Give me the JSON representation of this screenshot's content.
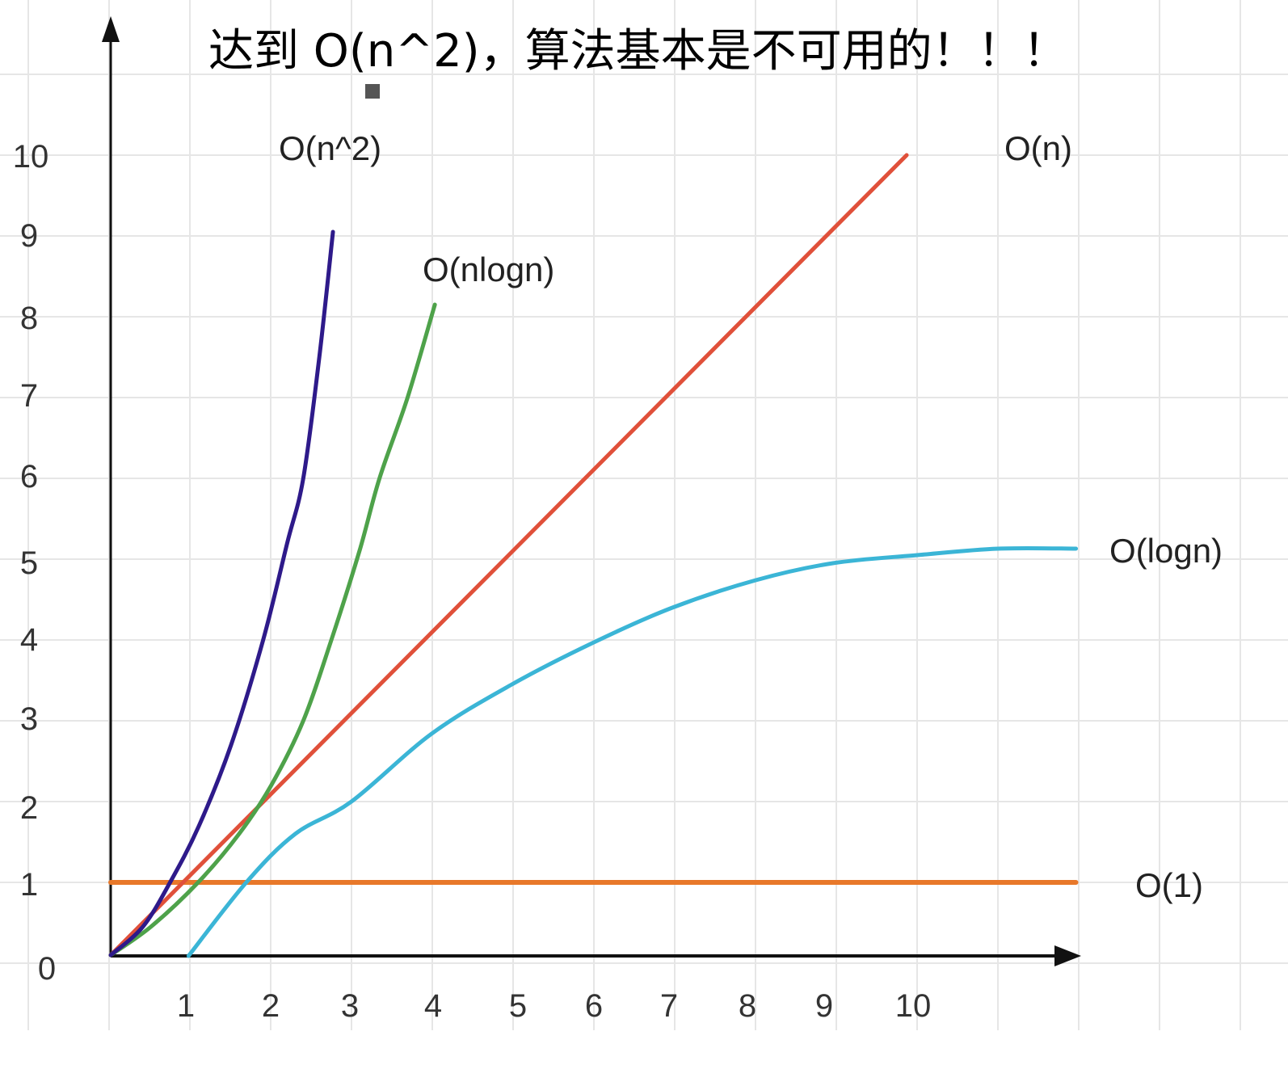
{
  "chart_data": {
    "type": "line",
    "title": "达到 O(n^2)，算法基本是不可用的！！！",
    "xlabel": "",
    "ylabel": "",
    "xlim": [
      0,
      12
    ],
    "ylim": [
      0,
      10
    ],
    "grid": true,
    "x_ticks": [
      "1",
      "2",
      "3",
      "4",
      "5",
      "6",
      "7",
      "8",
      "9",
      "10"
    ],
    "y_ticks": [
      "0",
      "1",
      "2",
      "3",
      "4",
      "5",
      "6",
      "7",
      "8",
      "9",
      "10"
    ],
    "series": [
      {
        "name": "O(n^2)",
        "color": "#2e1a8a",
        "points": [
          [
            0,
            0.1
          ],
          [
            0.4,
            0.45
          ],
          [
            0.74,
            1
          ],
          [
            1.1,
            1.7
          ],
          [
            1.5,
            2.7
          ],
          [
            1.9,
            4
          ],
          [
            2.2,
            5.2
          ],
          [
            2.4,
            6
          ],
          [
            2.6,
            7.5
          ],
          [
            2.77,
            9.05
          ]
        ]
      },
      {
        "name": "O(nlogn)",
        "color": "#4ea24a",
        "points": [
          [
            0,
            0.1
          ],
          [
            0.5,
            0.45
          ],
          [
            1.09,
            1
          ],
          [
            1.6,
            1.6
          ],
          [
            2.0,
            2.2
          ],
          [
            2.4,
            3
          ],
          [
            2.75,
            4
          ],
          [
            3.1,
            5.1
          ],
          [
            3.35,
            6
          ],
          [
            3.7,
            7
          ],
          [
            4.04,
            8.15
          ]
        ]
      },
      {
        "name": "O(n)",
        "color": "#e0503a",
        "points": [
          [
            0,
            0.1
          ],
          [
            9.92,
            10
          ]
        ]
      },
      {
        "name": "O(logn)",
        "color": "#3bb5d6",
        "points": [
          [
            0.97,
            0.09
          ],
          [
            1.69,
            1
          ],
          [
            2.3,
            1.6
          ],
          [
            3.0,
            2.0
          ],
          [
            4.0,
            2.84
          ],
          [
            5.0,
            3.45
          ],
          [
            6.02,
            3.97
          ],
          [
            7.0,
            4.4
          ],
          [
            8.04,
            4.74
          ],
          [
            9.0,
            4.95
          ],
          [
            10.05,
            5.05
          ],
          [
            11.06,
            5.13
          ],
          [
            12.03,
            5.13
          ]
        ]
      },
      {
        "name": "O(1)",
        "color": "#e8782a",
        "points": [
          [
            0,
            1
          ],
          [
            12.03,
            1
          ]
        ]
      }
    ]
  }
}
